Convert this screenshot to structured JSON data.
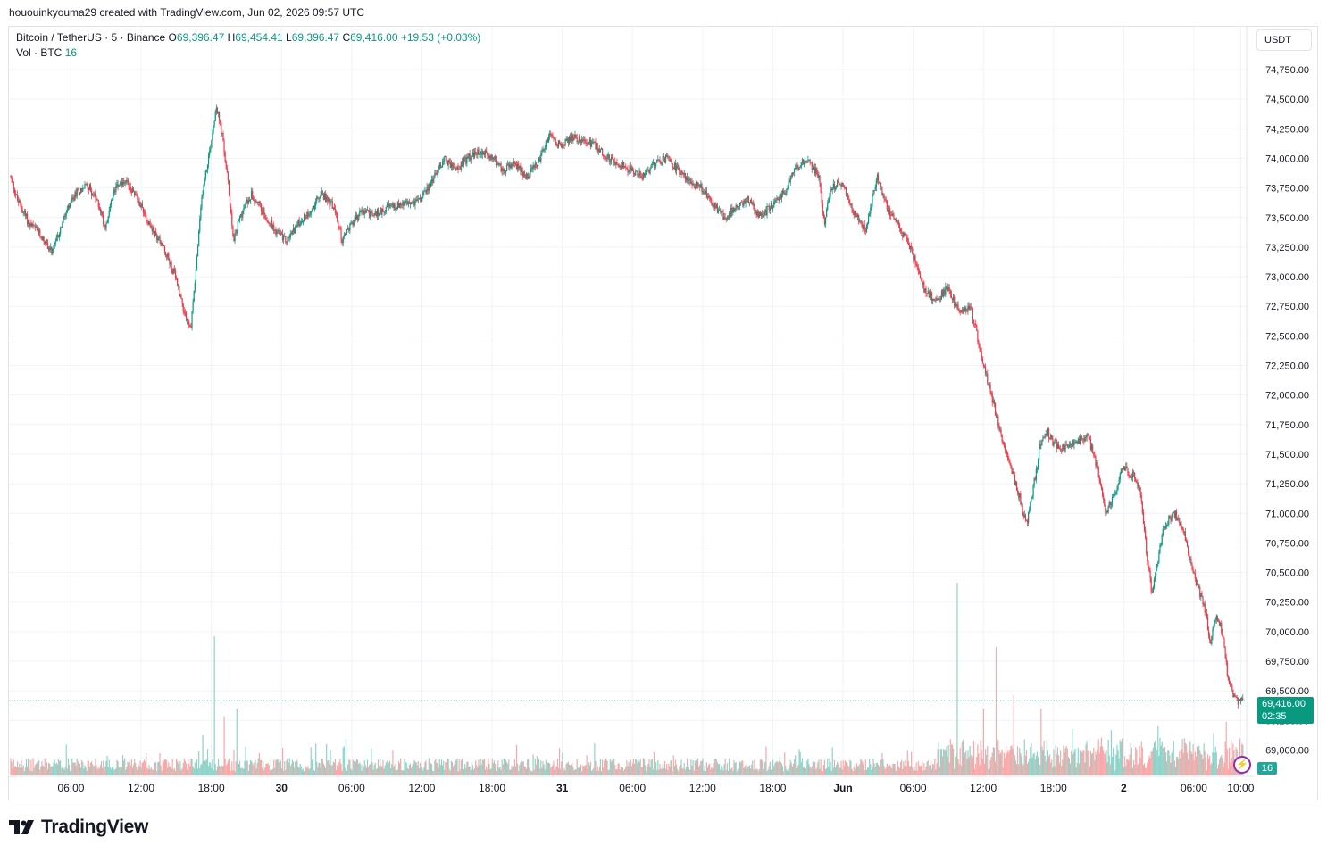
{
  "header": "hououinkyouma29 created with TradingView.com, Jun 02, 2026 09:57 UTC",
  "legend": {
    "symbol": "Bitcoin / TetherUS · 5 · Binance",
    "open_label": "O",
    "open": "69,396.47",
    "high_label": "H",
    "high": "69,454.41",
    "low_label": "L",
    "low": "69,396.47",
    "close_label": "C",
    "close": "69,416.00",
    "change": "+19.53 (+0.03%)",
    "vol_label": "Vol · BTC",
    "vol_value": "16"
  },
  "currency_button": "USDT",
  "brand": "TradingView",
  "last_price": {
    "value": "69,416.00",
    "countdown": "02:35"
  },
  "volume_badge": "16",
  "colors": {
    "up": "#089981",
    "down": "#f23645",
    "vol_up": "#8fd3c9",
    "vol_down": "#f7a9a9",
    "grid": "#f0f3fa"
  },
  "chart_data": {
    "type": "candlestick",
    "symbol": "BTCUSDT",
    "ylim": [
      68850,
      75000
    ],
    "y_ticks": [
      "74,750.00",
      "74,500.00",
      "74,250.00",
      "74,000.00",
      "73,750.00",
      "73,500.00",
      "73,250.00",
      "73,000.00",
      "72,750.00",
      "72,500.00",
      "72,250.00",
      "72,000.00",
      "71,750.00",
      "71,500.00",
      "71,250.00",
      "71,000.00",
      "70,750.00",
      "70,500.00",
      "70,250.00",
      "70,000.00",
      "69,750.00",
      "69,500.00",
      "69,250.00",
      "69,000.00"
    ],
    "y_tick_values": [
      74750,
      74500,
      74250,
      74000,
      73750,
      73500,
      73250,
      73000,
      72750,
      72500,
      72250,
      72000,
      71750,
      71500,
      71250,
      71000,
      70750,
      70500,
      70250,
      70000,
      69750,
      69500,
      69250,
      69000
    ],
    "x_ticks": [
      "06:00",
      "12:00",
      "18:00",
      "30",
      "06:00",
      "12:00",
      "18:00",
      "31",
      "06:00",
      "12:00",
      "18:00",
      "Jun",
      "06:00",
      "12:00",
      "18:00",
      "2",
      "06:00",
      "10:00"
    ],
    "x_tick_hours": [
      6,
      12,
      18,
      24,
      30,
      36,
      42,
      48,
      54,
      60,
      66,
      72,
      78,
      84,
      90,
      96,
      102,
      106
    ],
    "x_range_hours": [
      0.85,
      106.2
    ],
    "price_path": [
      [
        0.9,
        73850
      ],
      [
        1.5,
        73650
      ],
      [
        2.5,
        73450
      ],
      [
        3.5,
        73350
      ],
      [
        4.5,
        73200
      ],
      [
        5.5,
        73500
      ],
      [
        6.5,
        73700
      ],
      [
        7.5,
        73780
      ],
      [
        8.5,
        73600
      ],
      [
        9,
        73420
      ],
      [
        10,
        73800
      ],
      [
        11,
        73780
      ],
      [
        12,
        73620
      ],
      [
        13,
        73400
      ],
      [
        14,
        73250
      ],
      [
        15,
        73000
      ],
      [
        15.8,
        72700
      ],
      [
        16.3,
        72550
      ],
      [
        16.8,
        73100
      ],
      [
        17.3,
        73700
      ],
      [
        18,
        74100
      ],
      [
        18.5,
        74450
      ],
      [
        19,
        74200
      ],
      [
        19.5,
        73800
      ],
      [
        20,
        73300
      ],
      [
        20.5,
        73500
      ],
      [
        21.5,
        73700
      ],
      [
        22.5,
        73550
      ],
      [
        23.5,
        73400
      ],
      [
        24.5,
        73300
      ],
      [
        25.5,
        73450
      ],
      [
        26.5,
        73550
      ],
      [
        27.5,
        73700
      ],
      [
        28.5,
        73600
      ],
      [
        29.3,
        73300
      ],
      [
        30,
        73450
      ],
      [
        31,
        73550
      ],
      [
        32,
        73520
      ],
      [
        33,
        73580
      ],
      [
        34,
        73600
      ],
      [
        35,
        73620
      ],
      [
        36,
        73650
      ],
      [
        37,
        73820
      ],
      [
        38,
        74000
      ],
      [
        39,
        73900
      ],
      [
        40,
        74000
      ],
      [
        41,
        74050
      ],
      [
        42,
        74020
      ],
      [
        43,
        73900
      ],
      [
        44,
        73950
      ],
      [
        45,
        73850
      ],
      [
        46,
        73950
      ],
      [
        47,
        74200
      ],
      [
        48,
        74100
      ],
      [
        49,
        74180
      ],
      [
        50,
        74150
      ],
      [
        51,
        74100
      ],
      [
        52,
        74000
      ],
      [
        53,
        73950
      ],
      [
        54,
        73900
      ],
      [
        55,
        73850
      ],
      [
        56,
        73950
      ],
      [
        57,
        74000
      ],
      [
        58,
        73900
      ],
      [
        59,
        73800
      ],
      [
        60,
        73750
      ],
      [
        61,
        73600
      ],
      [
        62,
        73500
      ],
      [
        63,
        73600
      ],
      [
        64,
        73650
      ],
      [
        65,
        73500
      ],
      [
        66,
        73600
      ],
      [
        67,
        73700
      ],
      [
        68,
        73900
      ],
      [
        69,
        74000
      ],
      [
        70,
        73850
      ],
      [
        70.5,
        73450
      ],
      [
        71,
        73750
      ],
      [
        72,
        73800
      ],
      [
        73,
        73550
      ],
      [
        74,
        73400
      ],
      [
        75,
        73850
      ],
      [
        76,
        73550
      ],
      [
        77,
        73400
      ],
      [
        78,
        73200
      ],
      [
        79,
        72900
      ],
      [
        80,
        72800
      ],
      [
        81,
        72900
      ],
      [
        82,
        72700
      ],
      [
        83,
        72750
      ],
      [
        84,
        72300
      ],
      [
        85,
        71900
      ],
      [
        86,
        71500
      ],
      [
        87,
        71200
      ],
      [
        87.8,
        70900
      ],
      [
        88.5,
        71300
      ],
      [
        89,
        71600
      ],
      [
        89.5,
        71700
      ],
      [
        90,
        71600
      ],
      [
        91,
        71550
      ],
      [
        92,
        71600
      ],
      [
        93,
        71650
      ],
      [
        93.8,
        71400
      ],
      [
        94.5,
        71000
      ],
      [
        95.5,
        71200
      ],
      [
        96,
        71400
      ],
      [
        97,
        71300
      ],
      [
        97.5,
        71200
      ],
      [
        98,
        70700
      ],
      [
        98.5,
        70300
      ],
      [
        99,
        70600
      ],
      [
        99.5,
        70900
      ],
      [
        100.5,
        71000
      ],
      [
        101.2,
        70850
      ],
      [
        102,
        70500
      ],
      [
        103,
        70200
      ],
      [
        103.5,
        69900
      ],
      [
        104,
        70150
      ],
      [
        104.5,
        70000
      ],
      [
        105,
        69600
      ],
      [
        105.6,
        69420
      ],
      [
        106,
        69416
      ]
    ],
    "volume_spikes": [
      [
        17.3,
        15
      ],
      [
        18.3,
        52
      ],
      [
        19.1,
        22
      ],
      [
        20.2,
        25
      ],
      [
        81.8,
        72
      ],
      [
        84.0,
        25
      ],
      [
        85.1,
        48
      ],
      [
        86.6,
        30
      ],
      [
        88.9,
        25
      ],
      [
        99.1,
        14
      ],
      [
        100.3,
        13
      ],
      [
        103.7,
        16
      ],
      [
        104.8,
        20
      ]
    ]
  }
}
